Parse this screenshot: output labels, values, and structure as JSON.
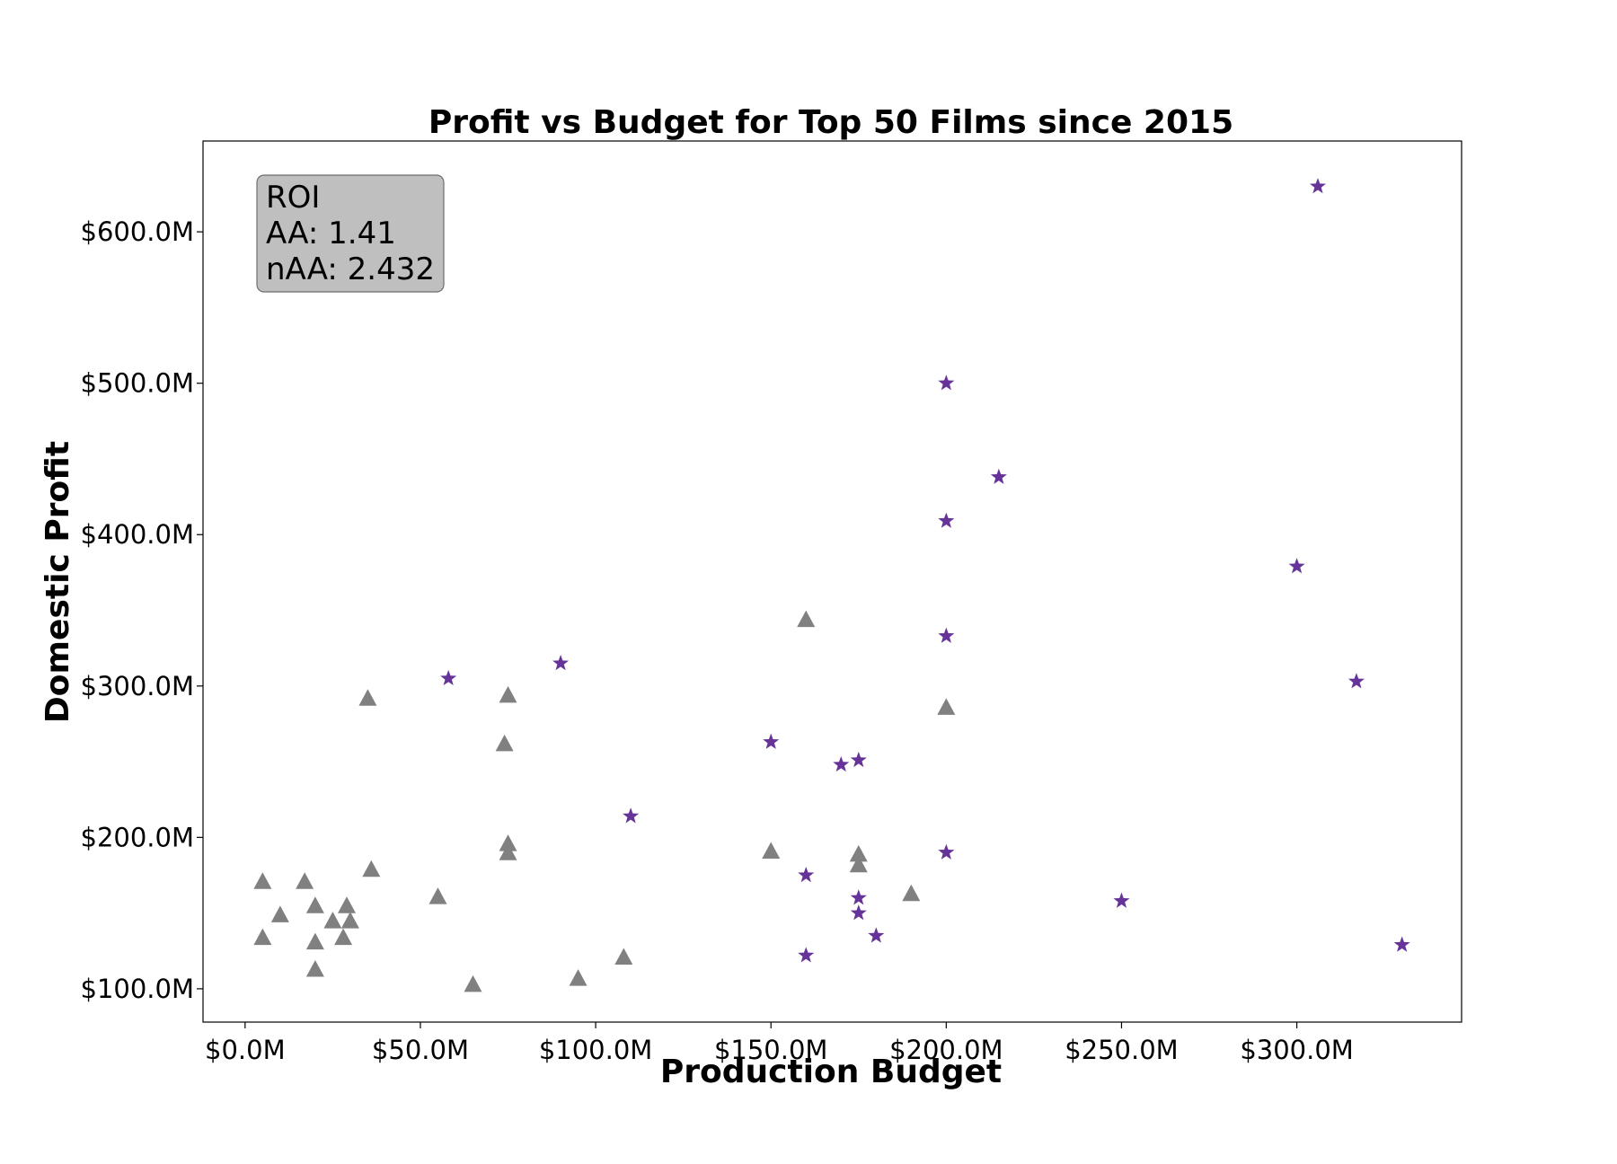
{
  "chart_data": {
    "type": "scatter",
    "title": "Profit vs Budget for Top 50 Films since 2015",
    "xlabel": "Production Budget",
    "ylabel": "Domestic Profit",
    "xlim": [
      -12,
      347
    ],
    "ylim": [
      78,
      660
    ],
    "x_ticks": [
      0,
      50,
      100,
      150,
      200,
      250,
      300
    ],
    "x_tick_labels": [
      "$0.0M",
      "$50.0M",
      "$100.0M",
      "$150.0M",
      "$200.0M",
      "$250.0M",
      "$300.0M"
    ],
    "y_ticks": [
      100,
      200,
      300,
      400,
      500,
      600
    ],
    "y_tick_labels": [
      "$100.0M",
      "$200.0M",
      "$300.0M",
      "$400.0M",
      "$500.0M",
      "$600.0M"
    ],
    "grid": false,
    "annotation": {
      "lines": [
        "ROI",
        "AA: 1.41",
        "nAA: 2.432"
      ],
      "position": "top-left"
    },
    "series": [
      {
        "marker": "triangle",
        "color": "#808080",
        "points": [
          [
            5,
            171
          ],
          [
            5,
            134
          ],
          [
            10,
            149
          ],
          [
            17,
            171
          ],
          [
            20,
            155
          ],
          [
            20,
            131
          ],
          [
            20,
            113
          ],
          [
            25,
            145
          ],
          [
            28,
            134
          ],
          [
            29,
            155
          ],
          [
            30,
            145
          ],
          [
            35,
            292
          ],
          [
            36,
            179
          ],
          [
            55,
            161
          ],
          [
            65,
            103
          ],
          [
            74,
            262
          ],
          [
            75,
            294
          ],
          [
            75,
            196
          ],
          [
            75,
            190
          ],
          [
            95,
            107
          ],
          [
            108,
            121
          ],
          [
            150,
            191
          ],
          [
            160,
            344
          ],
          [
            175,
            189
          ],
          [
            175,
            182
          ],
          [
            190,
            163
          ],
          [
            200,
            286
          ]
        ]
      },
      {
        "marker": "star",
        "color": "#663399",
        "points": [
          [
            58,
            305
          ],
          [
            90,
            315
          ],
          [
            110,
            214
          ],
          [
            150,
            263
          ],
          [
            160,
            175
          ],
          [
            160,
            122
          ],
          [
            170,
            248
          ],
          [
            175,
            251
          ],
          [
            175,
            160
          ],
          [
            175,
            150
          ],
          [
            180,
            135
          ],
          [
            200,
            500
          ],
          [
            200,
            409
          ],
          [
            200,
            333
          ],
          [
            200,
            190
          ],
          [
            215,
            438
          ],
          [
            250,
            158
          ],
          [
            300,
            379
          ],
          [
            306,
            630
          ],
          [
            317,
            303
          ],
          [
            330,
            129
          ]
        ]
      }
    ]
  }
}
